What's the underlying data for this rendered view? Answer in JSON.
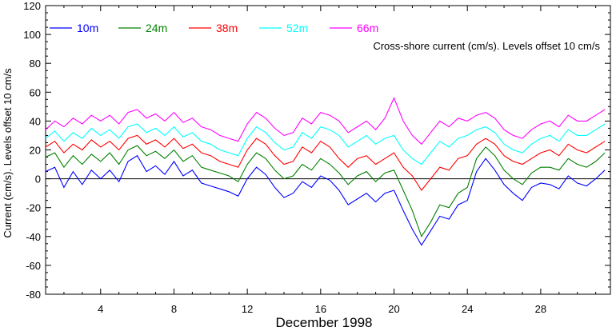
{
  "chart_data": {
    "type": "line",
    "annotation": "Cross-shore current (cm/s). Levels offset 10 cm/s",
    "xlabel": "December 1998",
    "ylabel": "Current (cm/s). Levels offset 10 cm/s",
    "xlim": [
      1,
      31.8
    ],
    "ylim": [
      -80,
      120
    ],
    "xticks": [
      4,
      8,
      12,
      16,
      20,
      24,
      28
    ],
    "yticks": [
      -80,
      -60,
      -40,
      -20,
      0,
      20,
      40,
      60,
      80,
      100,
      120
    ],
    "zero_line": true,
    "legend_position": "top-left",
    "series": [
      {
        "name": "10m",
        "color": "#0000ff",
        "x": [
          1.0,
          1.5,
          2.0,
          2.5,
          3.0,
          3.5,
          4.0,
          4.5,
          5.0,
          5.5,
          6.0,
          6.5,
          7.0,
          7.5,
          8.0,
          8.5,
          9.0,
          9.5,
          10.0,
          10.5,
          11.0,
          11.5,
          12.0,
          12.5,
          13.0,
          13.5,
          14.0,
          14.5,
          15.0,
          15.5,
          16.0,
          16.5,
          17.0,
          17.5,
          18.0,
          18.5,
          19.0,
          19.5,
          20.0,
          20.5,
          21.0,
          21.5,
          22.0,
          22.5,
          23.0,
          23.5,
          24.0,
          24.5,
          25.0,
          25.5,
          26.0,
          26.5,
          27.0,
          27.5,
          28.0,
          28.5,
          29.0,
          29.5,
          30.0,
          30.5,
          31.0,
          31.5
        ],
        "values": [
          5,
          8,
          -6,
          5,
          -4,
          6,
          0,
          6,
          -2,
          12,
          16,
          5,
          9,
          3,
          12,
          2,
          6,
          -3,
          -5,
          -7,
          -9,
          -12,
          0,
          8,
          3,
          -6,
          -13,
          -10,
          -2,
          -6,
          2,
          -1,
          -8,
          -18,
          -14,
          -10,
          -16,
          -10,
          -8,
          -22,
          -35,
          -46,
          -36,
          -26,
          -28,
          -18,
          -15,
          5,
          14,
          6,
          -4,
          -10,
          -15,
          -6,
          -3,
          -4,
          -7,
          2,
          -3,
          -5,
          0,
          6
        ]
      },
      {
        "name": "24m",
        "color": "#008000",
        "x": [
          1.0,
          1.5,
          2.0,
          2.5,
          3.0,
          3.5,
          4.0,
          4.5,
          5.0,
          5.5,
          6.0,
          6.5,
          7.0,
          7.5,
          8.0,
          8.5,
          9.0,
          9.5,
          10.0,
          10.5,
          11.0,
          11.5,
          12.0,
          12.5,
          13.0,
          13.5,
          14.0,
          14.5,
          15.0,
          15.5,
          16.0,
          16.5,
          17.0,
          17.5,
          18.0,
          18.5,
          19.0,
          19.5,
          20.0,
          20.5,
          21.0,
          21.5,
          22.0,
          22.5,
          23.0,
          23.5,
          24.0,
          24.5,
          25.0,
          25.5,
          26.0,
          26.5,
          27.0,
          27.5,
          28.0,
          28.5,
          29.0,
          29.5,
          30.0,
          30.5,
          31.0,
          31.5
        ],
        "values": [
          15,
          18,
          8,
          16,
          10,
          17,
          12,
          18,
          10,
          20,
          23,
          16,
          19,
          14,
          20,
          12,
          16,
          8,
          6,
          4,
          2,
          -2,
          10,
          18,
          14,
          6,
          0,
          2,
          10,
          6,
          14,
          10,
          4,
          -4,
          2,
          5,
          -2,
          4,
          6,
          -8,
          -22,
          -40,
          -30,
          -18,
          -20,
          -10,
          -6,
          14,
          22,
          16,
          6,
          0,
          -4,
          4,
          8,
          8,
          6,
          14,
          10,
          8,
          12,
          18
        ]
      },
      {
        "name": "38m",
        "color": "#ff0000",
        "x": [
          1.0,
          1.5,
          2.0,
          2.5,
          3.0,
          3.5,
          4.0,
          4.5,
          5.0,
          5.5,
          6.0,
          6.5,
          7.0,
          7.5,
          8.0,
          8.5,
          9.0,
          9.5,
          10.0,
          10.5,
          11.0,
          11.5,
          12.0,
          12.5,
          13.0,
          13.5,
          14.0,
          14.5,
          15.0,
          15.5,
          16.0,
          16.5,
          17.0,
          17.5,
          18.0,
          18.5,
          19.0,
          19.5,
          20.0,
          20.5,
          21.0,
          21.5,
          22.0,
          22.5,
          23.0,
          23.5,
          24.0,
          24.5,
          25.0,
          25.5,
          26.0,
          26.5,
          27.0,
          27.5,
          28.0,
          28.5,
          29.0,
          29.5,
          30.0,
          30.5,
          31.0,
          31.5
        ],
        "values": [
          22,
          26,
          18,
          24,
          20,
          27,
          22,
          26,
          20,
          28,
          30,
          24,
          27,
          22,
          28,
          21,
          24,
          18,
          16,
          12,
          10,
          8,
          20,
          28,
          24,
          16,
          10,
          12,
          22,
          18,
          26,
          22,
          14,
          8,
          14,
          16,
          10,
          14,
          18,
          8,
          2,
          -8,
          0,
          8,
          6,
          14,
          16,
          24,
          28,
          24,
          16,
          12,
          10,
          14,
          18,
          20,
          16,
          24,
          20,
          18,
          22,
          26
        ]
      },
      {
        "name": "52m",
        "color": "#00ffff",
        "x": [
          1.0,
          1.5,
          2.0,
          2.5,
          3.0,
          3.5,
          4.0,
          4.5,
          5.0,
          5.5,
          6.0,
          6.5,
          7.0,
          7.5,
          8.0,
          8.5,
          9.0,
          9.5,
          10.0,
          10.5,
          11.0,
          11.5,
          12.0,
          12.5,
          13.0,
          13.5,
          14.0,
          14.5,
          15.0,
          15.5,
          16.0,
          16.5,
          17.0,
          17.5,
          18.0,
          18.5,
          19.0,
          19.5,
          20.0,
          20.5,
          21.0,
          21.5,
          22.0,
          22.5,
          23.0,
          23.5,
          24.0,
          24.5,
          25.0,
          25.5,
          26.0,
          26.5,
          27.0,
          27.5,
          28.0,
          28.5,
          29.0,
          29.5,
          30.0,
          30.5,
          31.0,
          31.5
        ],
        "values": [
          28,
          33,
          26,
          32,
          28,
          35,
          30,
          34,
          28,
          36,
          38,
          32,
          35,
          30,
          36,
          29,
          32,
          26,
          24,
          20,
          18,
          16,
          28,
          36,
          32,
          25,
          20,
          22,
          32,
          28,
          36,
          34,
          30,
          22,
          26,
          30,
          24,
          28,
          30,
          20,
          14,
          10,
          18,
          26,
          22,
          28,
          30,
          34,
          36,
          32,
          24,
          20,
          18,
          24,
          28,
          30,
          26,
          34,
          30,
          30,
          34,
          38
        ]
      },
      {
        "name": "66m",
        "color": "#ff00ff",
        "x": [
          1.0,
          1.5,
          2.0,
          2.5,
          3.0,
          3.5,
          4.0,
          4.5,
          5.0,
          5.5,
          6.0,
          6.5,
          7.0,
          7.5,
          8.0,
          8.5,
          9.0,
          9.5,
          10.0,
          10.5,
          11.0,
          11.5,
          12.0,
          12.5,
          13.0,
          13.5,
          14.0,
          14.5,
          15.0,
          15.5,
          16.0,
          16.5,
          17.0,
          17.5,
          18.0,
          18.5,
          19.0,
          19.5,
          20.0,
          20.5,
          21.0,
          21.5,
          22.0,
          22.5,
          23.0,
          23.5,
          24.0,
          24.5,
          25.0,
          25.5,
          26.0,
          26.5,
          27.0,
          27.5,
          28.0,
          28.5,
          29.0,
          29.5,
          30.0,
          30.5,
          31.0,
          31.5
        ],
        "values": [
          34,
          40,
          36,
          42,
          38,
          44,
          40,
          44,
          38,
          46,
          48,
          42,
          45,
          40,
          46,
          39,
          42,
          36,
          34,
          30,
          28,
          26,
          38,
          46,
          42,
          35,
          30,
          32,
          42,
          38,
          46,
          44,
          40,
          32,
          36,
          40,
          34,
          42,
          56,
          40,
          30,
          24,
          32,
          40,
          36,
          42,
          40,
          44,
          46,
          42,
          34,
          30,
          28,
          34,
          38,
          40,
          36,
          44,
          40,
          40,
          44,
          48
        ]
      }
    ]
  }
}
